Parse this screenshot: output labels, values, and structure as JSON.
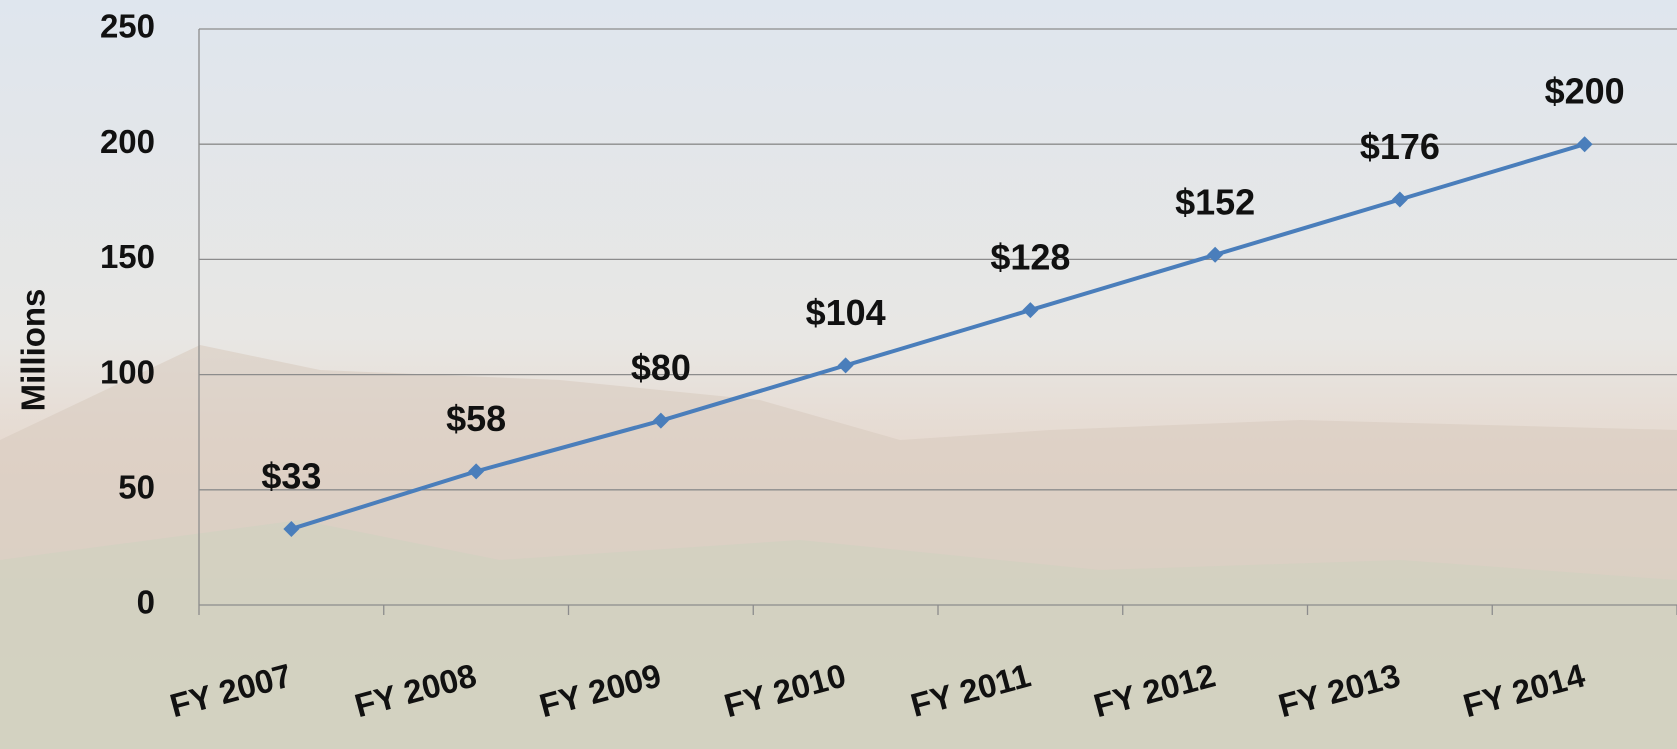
{
  "chart_data": {
    "type": "line",
    "y_label": "Millions",
    "categories": [
      "FY 2007",
      "FY 2008",
      "FY 2009",
      "FY 2010",
      "FY 2011",
      "FY 2012",
      "FY 2013",
      "FY 2014"
    ],
    "values": [
      33,
      58,
      80,
      104,
      128,
      152,
      176,
      200
    ],
    "value_labels": [
      "$33",
      "$58",
      "$80",
      "$104",
      "$128",
      "$152",
      "$176",
      "$200"
    ],
    "color": "#4a7ebb",
    "ylim": [
      0,
      250
    ],
    "yticks": [
      0,
      50,
      100,
      150,
      200,
      250
    ],
    "grid": true
  }
}
